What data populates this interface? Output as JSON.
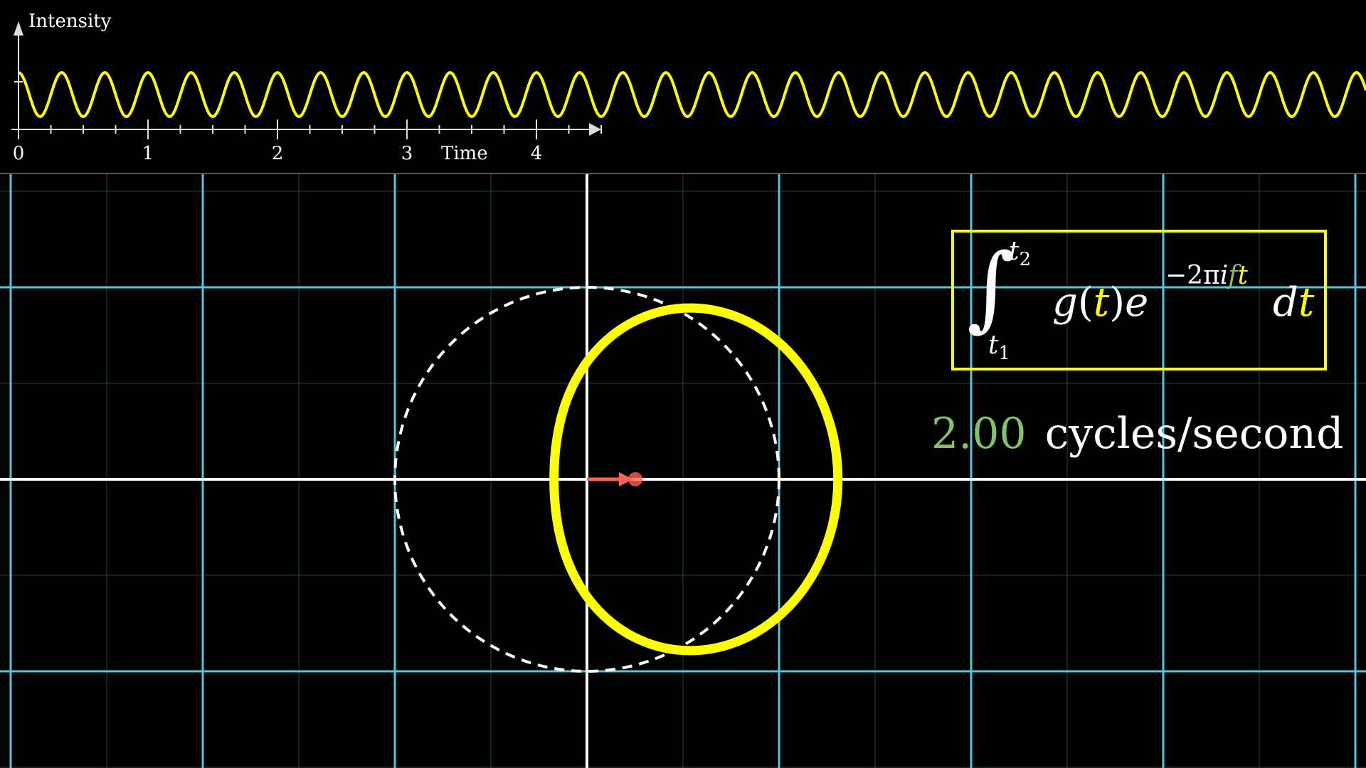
{
  "top_graph": {
    "y_axis_label": "Intensity",
    "x_axis_label": "Time",
    "x_tick_labels": [
      "0",
      "1",
      "2",
      "3",
      "4"
    ],
    "signal_frequency_hz": 3,
    "signal_color": "#ffff00",
    "axis_color": "#dddddd"
  },
  "winding_plane": {
    "grid_color": "#58c4dd",
    "axis_color": "#ffffff",
    "curve_color": "#ffff00",
    "reference_circle_style": "dashed-white",
    "center_of_mass_color": "#fc6255"
  },
  "formula": {
    "t_upper": "t",
    "t_upper_sub": "2",
    "t_lower": "t",
    "t_lower_sub": "1",
    "g": "g",
    "open_paren": "(",
    "t_arg": "t",
    "close_paren": ")",
    "e": "e",
    "exp_prefix": "−2π",
    "exp_i": "i",
    "exp_f": "f",
    "exp_t": "t",
    "d": "d",
    "dt_t": "t",
    "box_color": "#ffff00",
    "highlight_color": "#ffff00",
    "frequency_color": "#83c167"
  },
  "frequency_readout": {
    "value": "2.00",
    "unit": "cycles/second",
    "value_color": "#83c167"
  }
}
